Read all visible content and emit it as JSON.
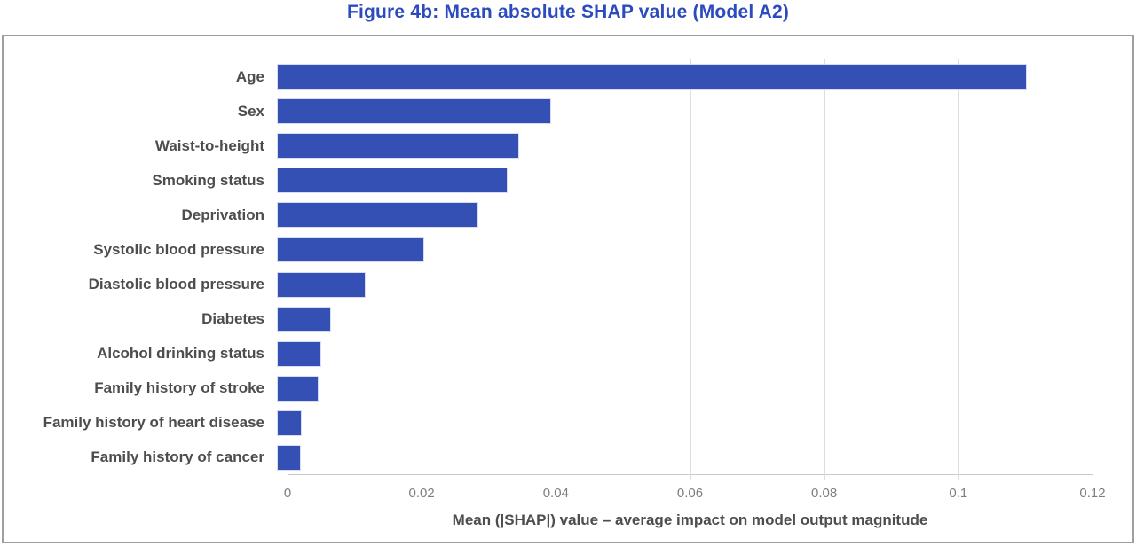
{
  "title": "Figure 4b: Mean absolute SHAP value (Model A2)",
  "chart_data": {
    "type": "bar",
    "orientation": "horizontal",
    "title": "Figure 4b: Mean absolute SHAP value (Model A2)",
    "categories": [
      "Age",
      "Sex",
      "Waist-to-height",
      "Smoking status",
      "Deprivation",
      "Systolic blood pressure",
      "Diastolic blood pressure",
      "Diabetes",
      "Alcohol drinking status",
      "Family history of stroke",
      "Family history of heart disease",
      "Family history of cancer"
    ],
    "values": [
      0.1104,
      0.0403,
      0.0357,
      0.0339,
      0.0296,
      0.0217,
      0.013,
      0.0079,
      0.0065,
      0.0061,
      0.0036,
      0.0035
    ],
    "xlabel": "Mean (|SHAP|) value – average impact on model output magnitude",
    "ylabel": "",
    "xlim": [
      0,
      0.12
    ],
    "xtick_labels": [
      "0",
      "0.02",
      "0.04",
      "0.06",
      "0.08",
      "0.1",
      "0.12"
    ],
    "xtick_values": [
      0,
      0.02,
      0.04,
      0.06,
      0.08,
      0.1,
      0.12
    ],
    "grid": "vertical",
    "legend_position": "none",
    "bar_color": "#3450B5"
  },
  "colors": {
    "title_blue": "#2B4BBE",
    "bar_blue": "#3450B5",
    "bar_edge": "#D7DDF4",
    "label_gray": "#4D4D4D",
    "tick_gray": "#7F7F7F",
    "gridline_gray": "#DEDEDE",
    "frame_border_gray": "#9E9E9E"
  }
}
